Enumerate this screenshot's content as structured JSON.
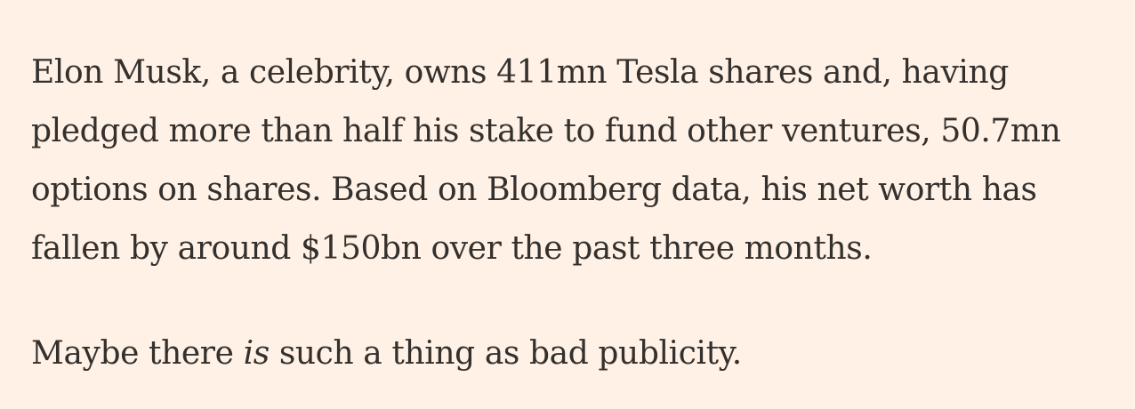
{
  "article": {
    "paragraph_1": "Elon Musk, a celebrity, owns 411mn Tesla shares and, having pledged more than half his stake to fund other ventures, 50.7mn options on shares. Based on Bloomberg data, his net worth has fallen by around $150bn over the past three months.",
    "paragraph_2": {
      "before": "Maybe there ",
      "emphasis": "is",
      "after": " such a thing as bad publicity."
    }
  }
}
